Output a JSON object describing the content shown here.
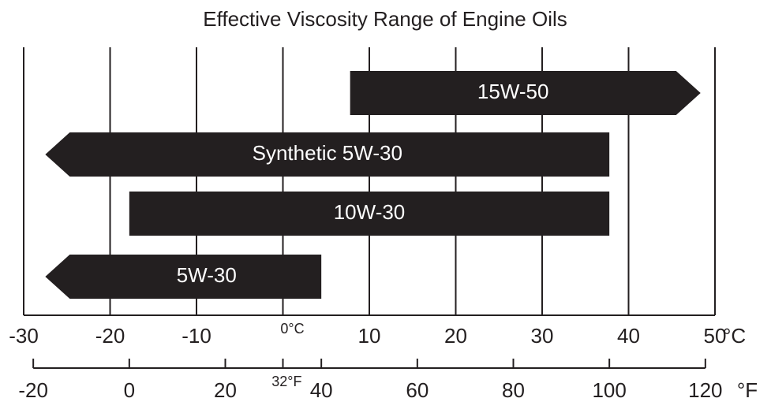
{
  "chart_data": {
    "type": "range-bar",
    "title": "Effective Viscosity Range of Engine Oils",
    "xlim": [
      -30,
      50
    ],
    "xticks": [
      -30,
      -20,
      -10,
      {
        "value": 0,
        "label": "0°C"
      },
      10,
      20,
      30,
      40,
      50
    ],
    "xunit": "°C",
    "x2lim": [
      -22,
      122
    ],
    "x2ticks": [
      -20,
      0,
      20,
      {
        "value": 32,
        "label": "32°F"
      },
      40,
      60,
      80,
      100,
      120
    ],
    "x2unit": "°F",
    "grid": true,
    "color": "#231f20",
    "series": [
      {
        "name": "15W-50",
        "values": [
          46,
          119
        ],
        "arrow": "right",
        "axis": "x2"
      },
      {
        "name": "Synthetic 5W-30",
        "values": [
          -17.5,
          100
        ],
        "arrow": "left",
        "axis": "x2"
      },
      {
        "name": "10W-30",
        "values": [
          0,
          100
        ],
        "arrow": "none",
        "axis": "x2"
      },
      {
        "name": "5W-30",
        "values": [
          -17.5,
          40
        ],
        "arrow": "left",
        "axis": "x2"
      }
    ]
  }
}
